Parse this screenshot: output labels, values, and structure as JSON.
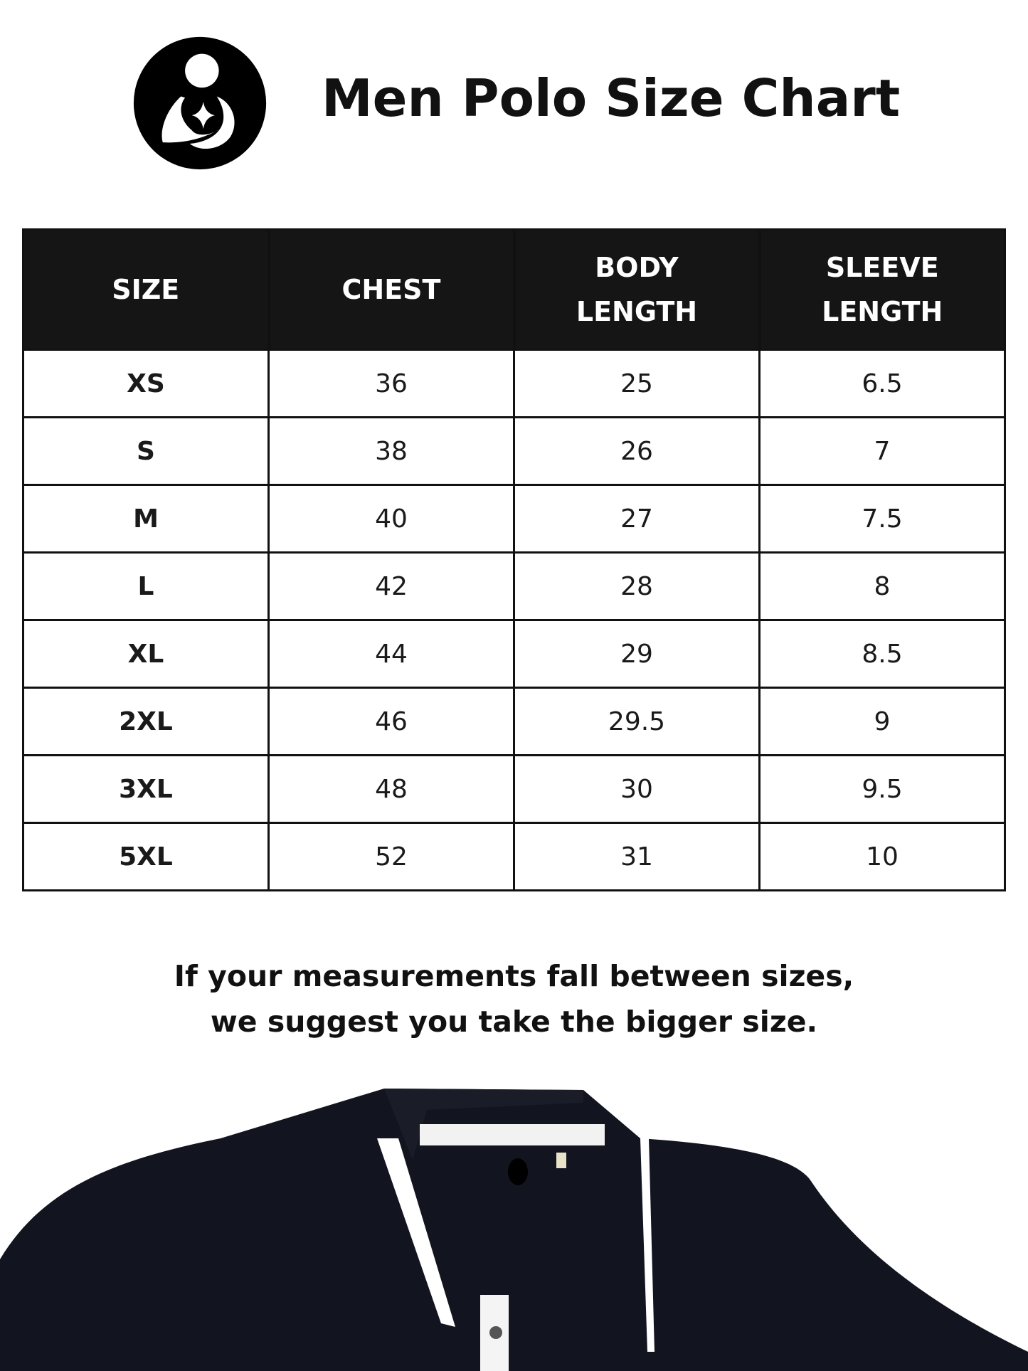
{
  "header": {
    "title": "Men Polo Size Chart",
    "logo": "mother-child-circle-logo"
  },
  "table": {
    "columns": [
      "SIZE",
      "CHEST",
      "BODY\nLENGTH",
      "SLEEVE\nLENGTH"
    ],
    "rows": [
      [
        "XS",
        "36",
        "25",
        "6.5"
      ],
      [
        "S",
        "38",
        "26",
        "7"
      ],
      [
        "M",
        "40",
        "27",
        "7.5"
      ],
      [
        "L",
        "42",
        "28",
        "8"
      ],
      [
        "XL",
        "44",
        "29",
        "8.5"
      ],
      [
        "2XL",
        "46",
        "29.5",
        "9"
      ],
      [
        "3XL",
        "48",
        "30",
        "9.5"
      ],
      [
        "5XL",
        "52",
        "31",
        "10"
      ]
    ]
  },
  "note": {
    "line1": "If your measurements fall between sizes,",
    "line2": "we suggest you take the bigger size."
  },
  "colors": {
    "header_bg": "#151515",
    "polo": "#12151f",
    "trim": "#ffffff"
  }
}
